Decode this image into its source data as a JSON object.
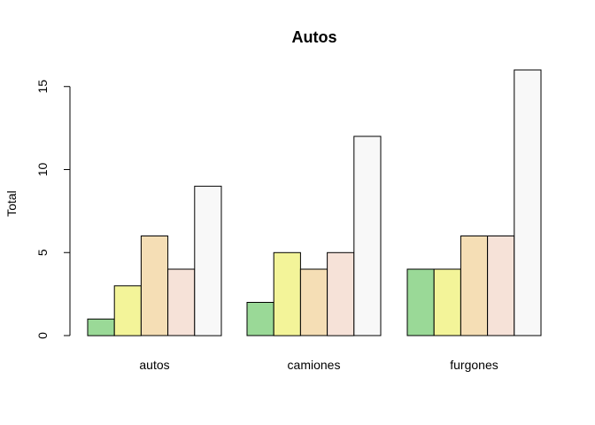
{
  "chart_data": {
    "type": "bar",
    "title": "Autos",
    "xlabel": "",
    "ylabel": "Total",
    "categories": [
      "autos",
      "camiones",
      "furgones"
    ],
    "series": [
      {
        "color": "#9ad997",
        "values": [
          1,
          2,
          4
        ]
      },
      {
        "color": "#f3f499",
        "values": [
          3,
          5,
          4
        ]
      },
      {
        "color": "#f5deb5",
        "values": [
          6,
          4,
          6
        ]
      },
      {
        "color": "#f6e2d8",
        "values": [
          4,
          5,
          6
        ]
      },
      {
        "color": "#f8f8f8",
        "values": [
          9,
          12,
          16
        ]
      }
    ],
    "ylim": [
      0,
      16
    ],
    "yticks": [
      0,
      5,
      10,
      15
    ],
    "grid": false,
    "legend": "none"
  }
}
